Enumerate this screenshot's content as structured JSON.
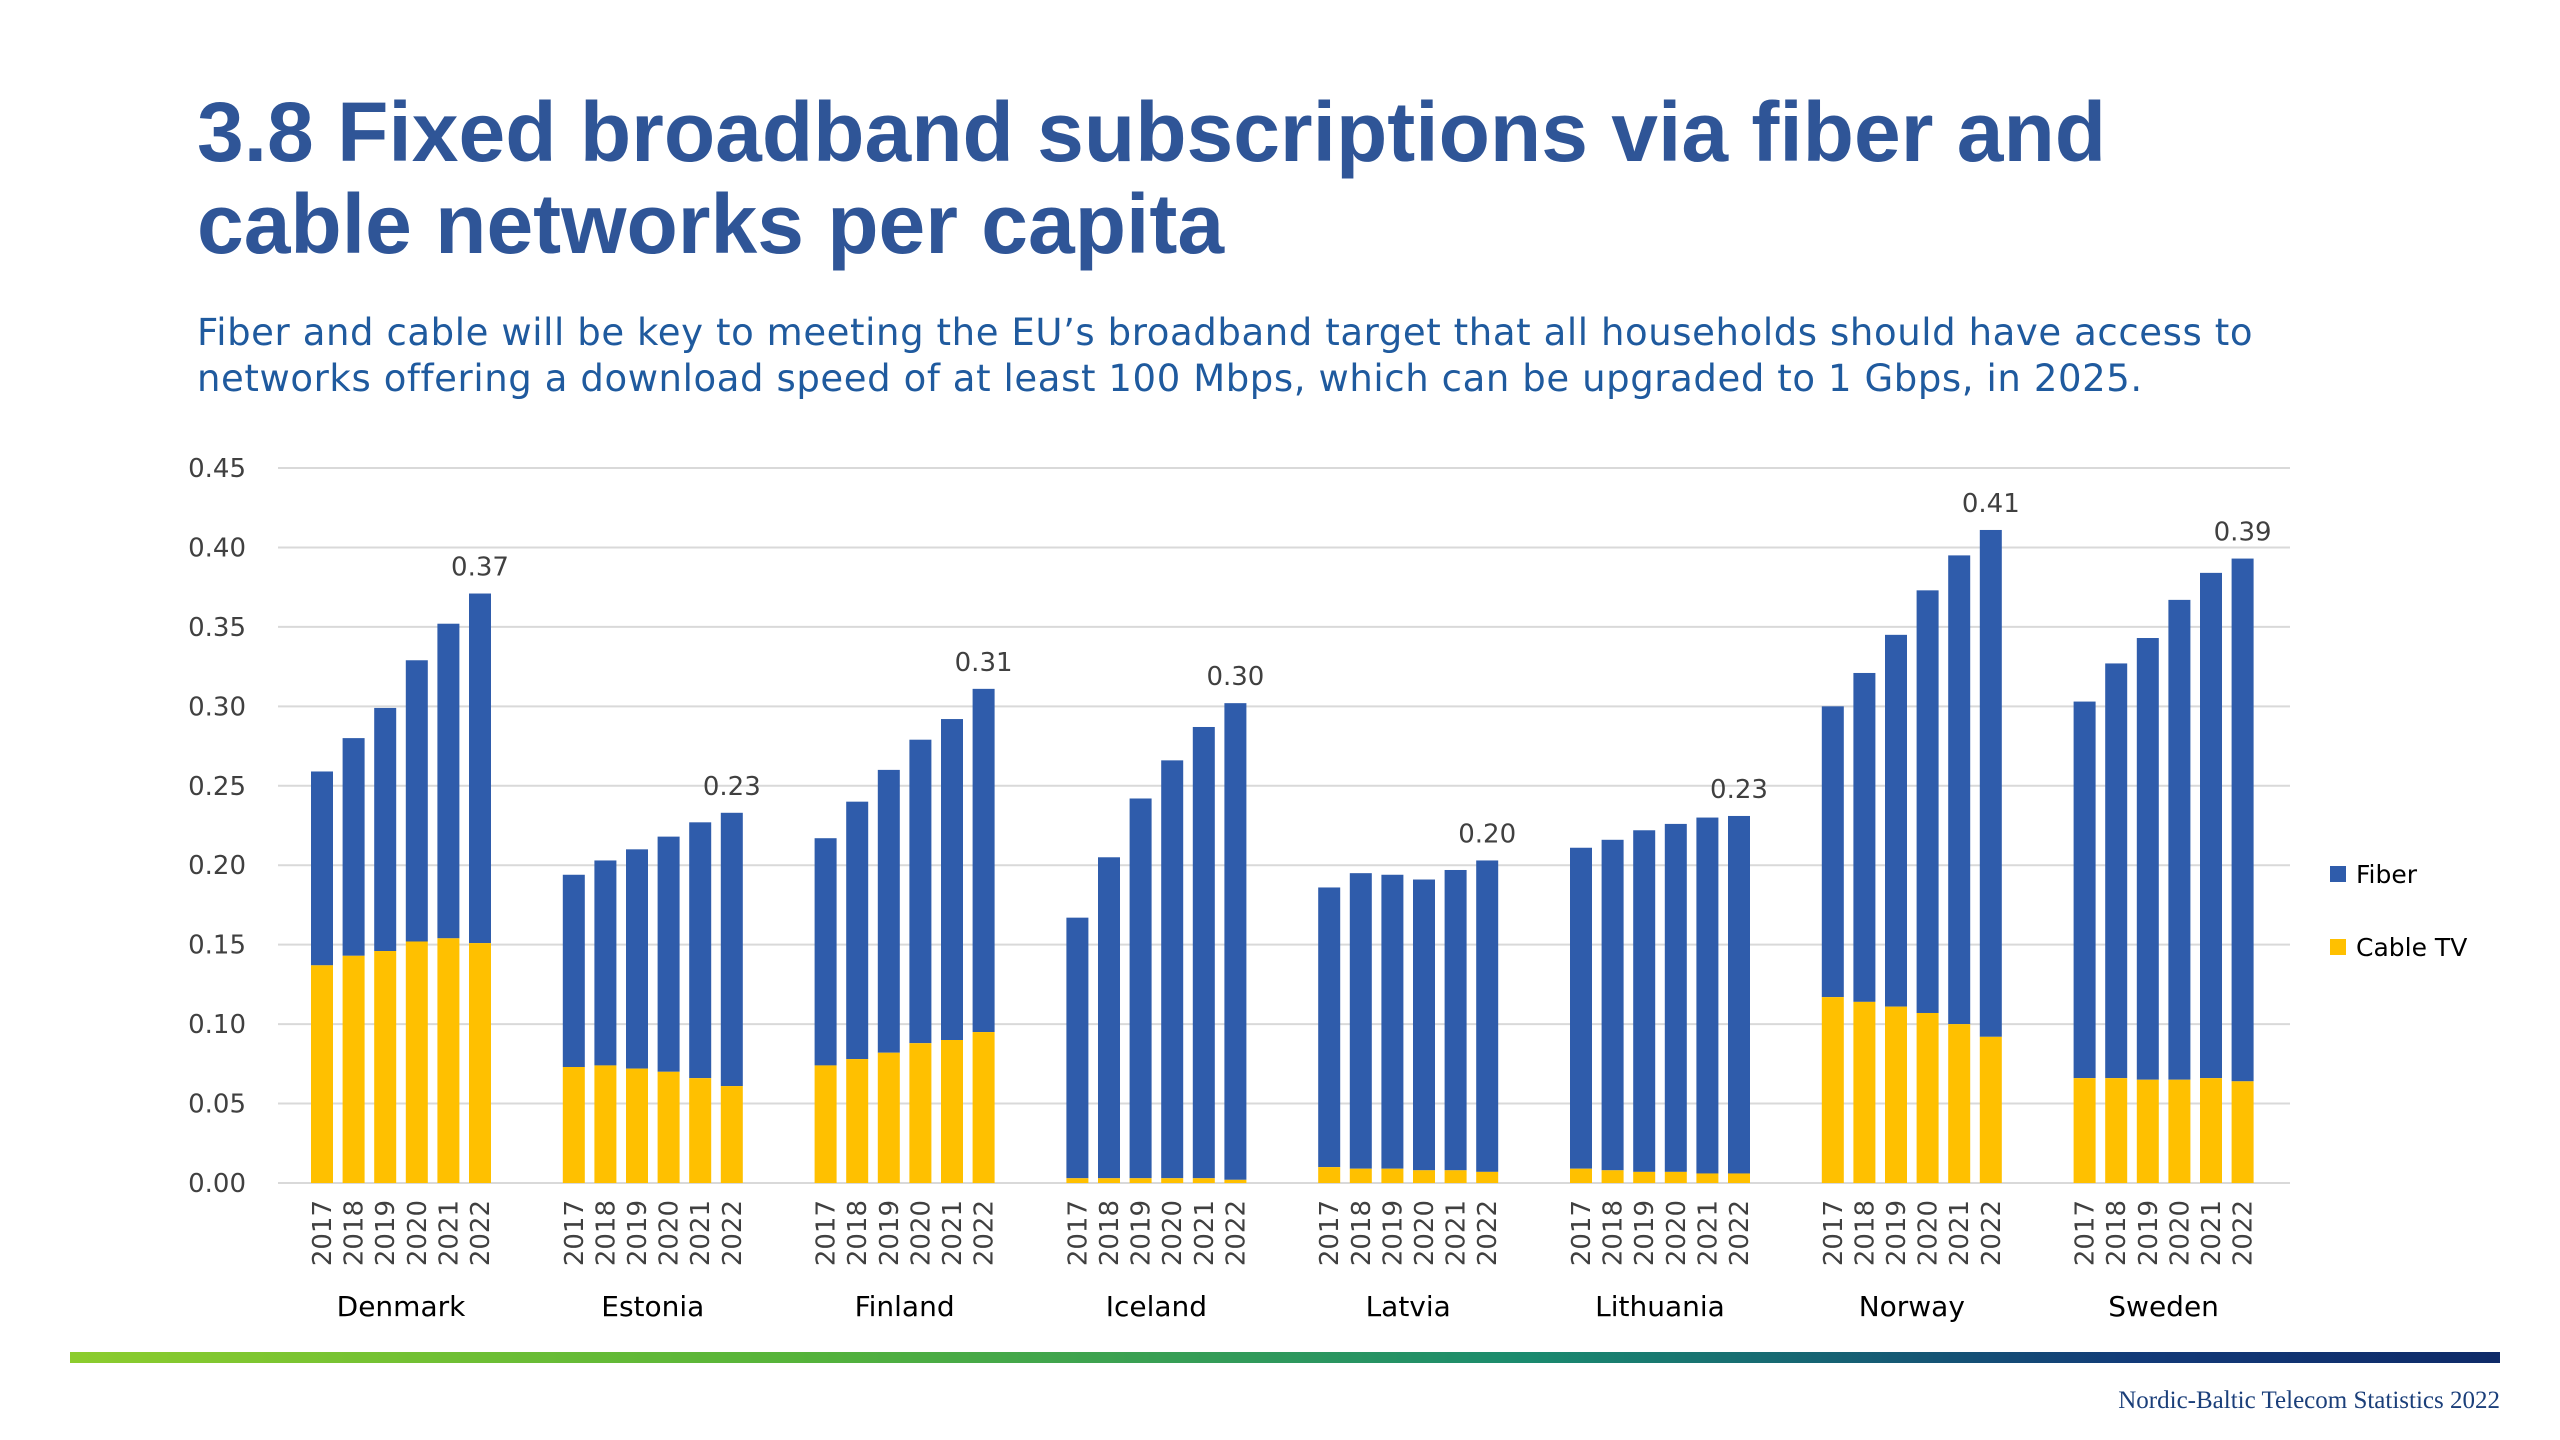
{
  "page": {
    "title_lines": [
      "3.8 Fixed broadband subscriptions via fiber and",
      "cable networks per capita"
    ],
    "subtitle_lines": [
      "Fiber and cable will be key to meeting the EU’s broadband target that all households should have access to",
      "networks offering a download speed of at least 100 Mbps, which can be upgraded to 1 Gbps, in 2025."
    ],
    "footer": "Nordic-Baltic Telecom Statistics 2022"
  },
  "colors": {
    "fiber": "#2f5cab",
    "cable": "#ffc000",
    "title": "#2f5597",
    "grid": "#d9d9d9"
  },
  "chart_data": {
    "type": "bar",
    "stacked": true,
    "ylim": [
      0,
      0.45
    ],
    "yticks": [
      "0.00",
      "0.05",
      "0.10",
      "0.15",
      "0.20",
      "0.25",
      "0.30",
      "0.35",
      "0.40",
      "0.45"
    ],
    "years": [
      "2017",
      "2018",
      "2019",
      "2020",
      "2021",
      "2022"
    ],
    "legend_position": "right",
    "grid": true,
    "series": [
      {
        "name": "Fiber",
        "color": "#2f5cab"
      },
      {
        "name": "Cable TV",
        "color": "#ffc000"
      }
    ],
    "groups": [
      {
        "country": "Denmark",
        "cable": [
          0.137,
          0.143,
          0.146,
          0.152,
          0.154,
          0.151
        ],
        "total": [
          0.259,
          0.28,
          0.299,
          0.329,
          0.352,
          0.371
        ],
        "label": "0.37"
      },
      {
        "country": "Estonia",
        "cable": [
          0.073,
          0.074,
          0.072,
          0.07,
          0.066,
          0.061
        ],
        "total": [
          0.194,
          0.203,
          0.21,
          0.218,
          0.227,
          0.233
        ],
        "label": "0.23"
      },
      {
        "country": "Finland",
        "cable": [
          0.074,
          0.078,
          0.082,
          0.088,
          0.09,
          0.095
        ],
        "total": [
          0.217,
          0.24,
          0.26,
          0.279,
          0.292,
          0.311
        ],
        "label": "0.31"
      },
      {
        "country": "Iceland",
        "cable": [
          0.003,
          0.003,
          0.003,
          0.003,
          0.003,
          0.002
        ],
        "total": [
          0.167,
          0.205,
          0.242,
          0.266,
          0.287,
          0.302
        ],
        "label": "0.30"
      },
      {
        "country": "Latvia",
        "cable": [
          0.01,
          0.009,
          0.009,
          0.008,
          0.008,
          0.007
        ],
        "total": [
          0.186,
          0.195,
          0.194,
          0.191,
          0.197,
          0.203
        ],
        "label": "0.20"
      },
      {
        "country": "Lithuania",
        "cable": [
          0.009,
          0.008,
          0.007,
          0.007,
          0.006,
          0.006
        ],
        "total": [
          0.211,
          0.216,
          0.222,
          0.226,
          0.23,
          0.231
        ],
        "label": "0.23"
      },
      {
        "country": "Norway",
        "cable": [
          0.117,
          0.114,
          0.111,
          0.107,
          0.1,
          0.092
        ],
        "total": [
          0.3,
          0.321,
          0.345,
          0.373,
          0.395,
          0.411
        ],
        "label": "0.41"
      },
      {
        "country": "Sweden",
        "cable": [
          0.066,
          0.066,
          0.065,
          0.065,
          0.066,
          0.064
        ],
        "total": [
          0.303,
          0.327,
          0.343,
          0.367,
          0.384,
          0.393
        ],
        "label": "0.39"
      }
    ]
  }
}
